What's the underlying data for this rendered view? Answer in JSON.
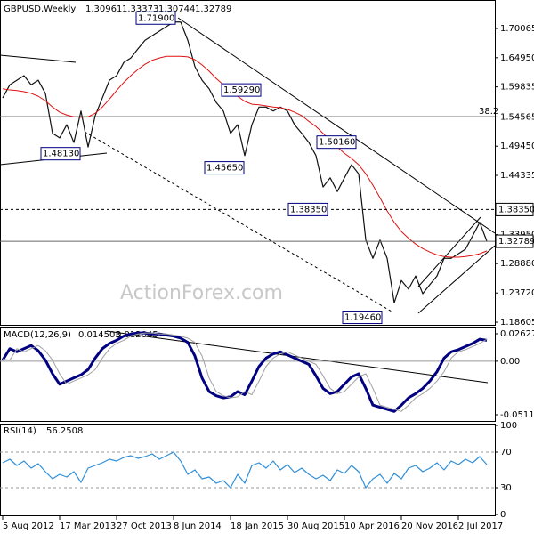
{
  "chart_data": [
    {
      "type": "line",
      "title": "GBPUSD,Weekly",
      "ohlc": [
        1.30961,
        1.33373,
        1.30744,
        1.32789
      ],
      "watermark": "ActionForex.com",
      "ylim": [
        1.1814,
        1.7428
      ],
      "yticks": [
        1.70065,
        {
          "value": 1.6495,
          "label": "1.64950"
        },
        1.59835,
        1.54565,
        {
          "value": 1.4945,
          "label": "1.49450"
        },
        1.44335,
        {
          "value": 1.3395,
          "label": "1.33950"
        },
        {
          "value": 1.2888,
          "label": "1.28880"
        },
        {
          "value": 1.2372,
          "label": "1.23720"
        },
        1.18605
      ],
      "grid": false,
      "series": [
        {
          "color": "#111111",
          "values": [
            1.579,
            1.602,
            1.61,
            1.618,
            1.602,
            1.61,
            1.587,
            1.517,
            1.509,
            1.532,
            1.501,
            1.556,
            1.493,
            1.548,
            1.579,
            1.61,
            1.618,
            1.641,
            1.649,
            1.665,
            1.68,
            1.688,
            1.696,
            1.704,
            1.712,
            1.712,
            1.68,
            1.634,
            1.61,
            1.595,
            1.571,
            1.556,
            1.517,
            1.532,
            1.478,
            1.532,
            1.563,
            1.563,
            1.556,
            1.563,
            1.556,
            1.532,
            1.517,
            1.501,
            1.478,
            1.423,
            1.439,
            1.415,
            1.439,
            1.462,
            1.446,
            1.33,
            1.298,
            1.33,
            1.298,
            1.22,
            1.259,
            1.244,
            1.267,
            1.236,
            1.252,
            1.267,
            1.298,
            1.298,
            1.306,
            1.314,
            1.337,
            1.361,
            1.328
          ]
        },
        {
          "color": "#e01010",
          "values": [
            1.595,
            1.593,
            1.592,
            1.59,
            1.587,
            1.582,
            1.574,
            1.563,
            1.554,
            1.549,
            1.546,
            1.545,
            1.546,
            1.552,
            1.563,
            1.577,
            1.592,
            1.606,
            1.618,
            1.629,
            1.638,
            1.645,
            1.649,
            1.652,
            1.652,
            1.652,
            1.651,
            1.646,
            1.637,
            1.626,
            1.613,
            1.602,
            1.592,
            1.582,
            1.573,
            1.568,
            1.567,
            1.565,
            1.563,
            1.562,
            1.559,
            1.554,
            1.548,
            1.538,
            1.529,
            1.517,
            1.504,
            1.493,
            1.482,
            1.473,
            1.462,
            1.446,
            1.426,
            1.404,
            1.381,
            1.361,
            1.345,
            1.333,
            1.323,
            1.315,
            1.309,
            1.304,
            1.301,
            1.3,
            1.3,
            1.301,
            1.303,
            1.306,
            1.311
          ]
        }
      ],
      "annotations": [
        {
          "value": 1.719,
          "label": "1.71900"
        },
        {
          "value": 1.5929,
          "label": "1.59290"
        },
        {
          "value": 1.4565,
          "label": "1.45650"
        },
        {
          "value": 1.5016,
          "label": "1.50160"
        },
        {
          "value": 1.4813,
          "label": "1.48130"
        },
        {
          "value": 1.3835,
          "label": "1.38350"
        },
        {
          "value": 1.1946,
          "label": "1.19460"
        }
      ],
      "fib_label": "38.2",
      "levels": [
        {
          "value": 1.3835,
          "label": "1.38350"
        }
      ]
    },
    {
      "type": "line",
      "title": "MACD(12,26,9)",
      "readings": [
        0.014503,
        0.012045
      ],
      "ylim": [
        -0.0571,
        0.0322
      ],
      "yticks": [
        0.026276,
        {
          "value": 0,
          "label": "0.00"
        },
        -0.051137
      ],
      "zero_line": true,
      "series": [
        {
          "color": "#000080",
          "values": [
            0.001,
            0.012,
            0.009,
            0.012,
            0.015,
            0.01,
            0.001,
            -0.012,
            -0.022,
            -0.019,
            -0.016,
            -0.013,
            -0.008,
            0.003,
            0.012,
            0.017,
            0.02,
            0.024,
            0.026,
            0.027,
            0.027,
            0.026,
            0.026,
            0.025,
            0.024,
            0.022,
            0.018,
            0.005,
            -0.016,
            -0.029,
            -0.033,
            -0.035,
            -0.034,
            -0.029,
            -0.032,
            -0.019,
            -0.005,
            0.003,
            0.007,
            0.009,
            0.006,
            0.003,
            0.0,
            -0.003,
            -0.014,
            -0.026,
            -0.031,
            -0.029,
            -0.022,
            -0.015,
            -0.012,
            -0.026,
            -0.042,
            -0.044,
            -0.046,
            -0.048,
            -0.042,
            -0.035,
            -0.031,
            -0.026,
            -0.019,
            -0.01,
            0.003,
            0.009,
            0.011,
            0.014,
            0.017,
            0.021,
            0.02
          ]
        },
        {
          "color": "#a0a0a0",
          "values": [
            0.002,
            0.001,
            0.012,
            0.009,
            0.012,
            0.015,
            0.01,
            0.001,
            -0.012,
            -0.022,
            -0.019,
            -0.016,
            -0.013,
            -0.008,
            0.003,
            0.012,
            0.017,
            0.02,
            0.024,
            0.026,
            0.027,
            0.027,
            0.026,
            0.026,
            0.025,
            0.024,
            0.022,
            0.018,
            0.005,
            -0.016,
            -0.029,
            -0.033,
            -0.035,
            -0.034,
            -0.029,
            -0.032,
            -0.019,
            -0.005,
            0.003,
            0.007,
            0.009,
            0.006,
            0.003,
            0.0,
            -0.003,
            -0.014,
            -0.026,
            -0.031,
            -0.029,
            -0.022,
            -0.015,
            -0.012,
            -0.026,
            -0.042,
            -0.044,
            -0.046,
            -0.048,
            -0.042,
            -0.035,
            -0.031,
            -0.026,
            -0.019,
            -0.01,
            0.003,
            0.009,
            0.011,
            0.014,
            0.017,
            0.021
          ]
        }
      ]
    },
    {
      "type": "line",
      "title": "RSI(14)",
      "readings": [
        56.2508
      ],
      "ylim": [
        0,
        100
      ],
      "yticks": [
        100,
        70,
        30,
        0
      ],
      "grid": true,
      "series": [
        {
          "color": "#2f8fd8",
          "values": [
            58,
            62,
            55,
            60,
            52,
            57,
            48,
            40,
            45,
            42,
            48,
            36,
            52,
            55,
            58,
            62,
            60,
            64,
            66,
            63,
            65,
            68,
            62,
            66,
            70,
            60,
            45,
            50,
            40,
            42,
            35,
            38,
            30,
            45,
            35,
            55,
            58,
            52,
            60,
            50,
            56,
            47,
            52,
            45,
            40,
            44,
            38,
            50,
            46,
            55,
            48,
            30,
            40,
            45,
            35,
            46,
            40,
            52,
            55,
            48,
            52,
            58,
            50,
            60,
            56,
            62,
            58,
            65,
            56
          ]
        }
      ],
      "xticks": [
        {
          "value": 0,
          "label": "5 Aug 2012"
        },
        {
          "value": 8,
          "label": "17 Mar 2013"
        },
        {
          "value": 16,
          "label": "27 Oct 2013"
        },
        {
          "value": 24,
          "label": "8 Jun 2014"
        },
        {
          "value": 32,
          "label": "18 Jan 2015"
        },
        {
          "value": 40,
          "label": "30 Aug 2015"
        },
        {
          "value": 48,
          "label": "10 Apr 2016"
        },
        {
          "value": 56,
          "label": "20 Nov 2016"
        },
        {
          "value": 64,
          "label": "2 Jul 2017"
        }
      ]
    }
  ]
}
